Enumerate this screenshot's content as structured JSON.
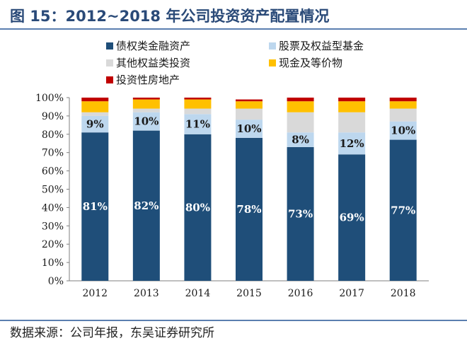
{
  "title": "图 15：2012~2018 年公司投资资产配置情况",
  "source": "数据来源：公司年报，东吴证券研究所",
  "chart_data": {
    "type": "bar",
    "stacked": true,
    "categories": [
      "2012",
      "2013",
      "2014",
      "2015",
      "2016",
      "2017",
      "2018"
    ],
    "ylim": [
      0,
      100
    ],
    "yticks": [
      "0%",
      "10%",
      "20%",
      "30%",
      "40%",
      "50%",
      "60%",
      "70%",
      "80%",
      "90%",
      "100%"
    ],
    "legend_position": "top",
    "series": [
      {
        "name": "债权类金融资产",
        "color": "#1f4e79",
        "values": [
          81,
          82,
          80,
          78,
          73,
          69,
          77
        ],
        "labels": [
          "81%",
          "82%",
          "80%",
          "78%",
          "73%",
          "69%",
          "77%"
        ]
      },
      {
        "name": "股票及权益型基金",
        "color": "#bdd7ee",
        "values": [
          9,
          10,
          11,
          10,
          8,
          12,
          10
        ],
        "labels": [
          "9%",
          "10%",
          "11%",
          "10%",
          "8%",
          "12%",
          "10%"
        ]
      },
      {
        "name": "其他权益类投资",
        "color": "#d9d9d9",
        "values": [
          2,
          2,
          3,
          6,
          11,
          11,
          7
        ],
        "labels": []
      },
      {
        "name": "现金及等价物",
        "color": "#ffc000",
        "values": [
          6,
          5,
          5,
          4,
          6,
          6,
          4
        ],
        "labels": []
      },
      {
        "name": "投资性房地产",
        "color": "#c00000",
        "values": [
          2,
          1,
          1,
          1,
          2,
          2,
          2
        ],
        "labels": []
      }
    ]
  }
}
